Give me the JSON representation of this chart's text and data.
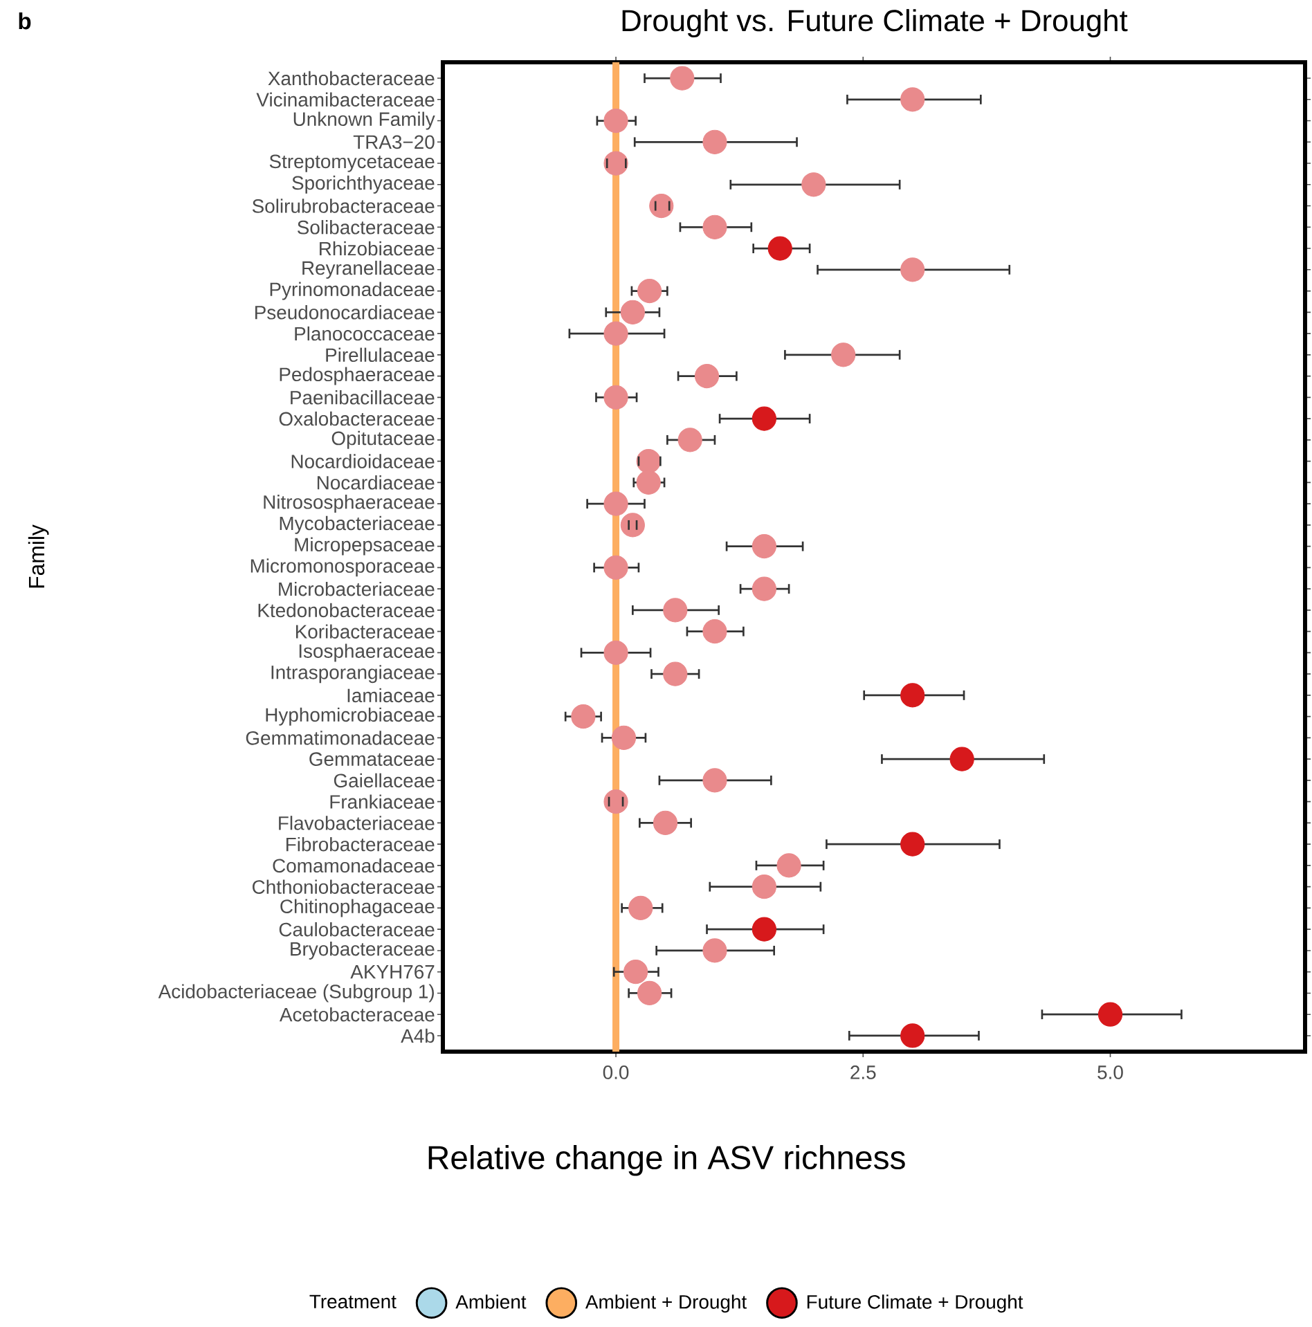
{
  "chart_data": {
    "type": "scatter",
    "orientation": "horizontal",
    "title": "Drought vs. Future Climate + Drought",
    "xlabel": "Relative change in ASV richness",
    "ylabel": "Family",
    "legend_title": "Treatment",
    "legend": "bottom",
    "grid": false,
    "annotations": [
      "b"
    ],
    "categories": [
      "Xanthobacteraceae",
      "Vicinamibacteraceae",
      "Unknown Family",
      "TRA3−20",
      "Streptomycetaceae",
      "Sporichthyaceae",
      "Solirubrobacteraceae",
      "Solibacteraceae",
      "Rhizobiaceae",
      "Reyranellaceae",
      "Pyrinomonadaceae",
      "Pseudonocardiaceae",
      "Planococcaceae",
      "Pirellulaceae",
      "Pedosphaeraceae",
      "Paenibacillaceae",
      "Oxalobacteraceae",
      "Opitutaceae",
      "Nocardioidaceae",
      "Nocardiaceae",
      "Nitrososphaeraceae",
      "Mycobacteriaceae",
      "Micropepsaceae",
      "Micromonosporaceae",
      "Microbacteriaceae",
      "Ktedonobacteraceae",
      "Koribacteraceae",
      "Isosphaeraceae",
      "Intrasporangiaceae",
      "Iamiaceae",
      "Hyphomicrobiaceae",
      "Gemmatimonadaceae",
      "Gemmataceae",
      "Gaiellaceae",
      "Frankiaceae",
      "Flavobacteriaceae",
      "Fibrobacteraceae",
      "Comamonadaceae",
      "Chthoniobacteraceae",
      "Chitinophagaceae",
      "Caulobacteraceae",
      "Bryobacteraceae",
      "AKYH767",
      "Acidobacteriaceae (Subgroup 1)",
      "Acetobacteraceae",
      "A4b"
    ],
    "xlim": [
      -1.75,
      6.97
    ],
    "xticks": [
      {
        "value": 0,
        "label": "0.0"
      },
      {
        "value": 2.5,
        "label": "2.5"
      },
      {
        "value": 5,
        "label": "5.0"
      }
    ],
    "ref_lines": [
      {
        "axis": "x",
        "value": 0,
        "color": "#fdae61"
      }
    ],
    "series": [
      {
        "name": "Ambient",
        "color": "#abd9e9",
        "values": [
          null,
          null,
          null,
          null,
          null,
          null,
          null,
          null,
          null,
          null,
          null,
          null,
          null,
          null,
          null,
          null,
          null,
          null,
          null,
          null,
          null,
          null,
          null,
          null,
          null,
          null,
          null,
          null,
          null,
          null,
          null,
          null,
          null,
          null,
          null,
          null,
          null,
          null,
          null,
          null,
          null,
          null,
          null,
          null,
          null,
          null
        ]
      },
      {
        "name": "Ambient + Drought",
        "color": "#fdae61",
        "values": [
          null,
          null,
          null,
          null,
          null,
          null,
          null,
          null,
          null,
          null,
          null,
          null,
          null,
          null,
          null,
          null,
          null,
          null,
          null,
          null,
          null,
          null,
          null,
          null,
          null,
          null,
          null,
          null,
          null,
          null,
          null,
          null,
          null,
          null,
          null,
          null,
          null,
          null,
          null,
          null,
          null,
          null,
          null,
          null,
          null,
          null
        ]
      },
      {
        "name": "Future Climate + Drought",
        "color": "#d7191c",
        "values": [
          0.67,
          3.0,
          0,
          1.0,
          0,
          2.0,
          0.46,
          1.0,
          1.66,
          3.0,
          0.34,
          0.17,
          0,
          2.3,
          0.92,
          0,
          1.5,
          0.75,
          0.33,
          0.33,
          0,
          0.17,
          1.5,
          0,
          1.5,
          0.6,
          1.0,
          0,
          0.6,
          3.0,
          -0.33,
          0.08,
          3.5,
          1.0,
          0,
          0.5,
          3.0,
          1.75,
          1.5,
          0.25,
          1.5,
          1.0,
          0.2,
          0.34,
          5.0,
          3.0
        ],
        "errors": [
          [
            0.29,
            1.06
          ],
          [
            2.34,
            3.69
          ],
          [
            -0.19,
            0.2
          ],
          [
            0.19,
            1.83
          ],
          [
            -0.09,
            0.1
          ],
          [
            1.16,
            2.87
          ],
          [
            0.4,
            0.54
          ],
          [
            0.65,
            1.37
          ],
          [
            1.39,
            1.96
          ],
          [
            2.04,
            3.98
          ],
          [
            0.16,
            0.52
          ],
          [
            -0.1,
            0.44
          ],
          [
            -0.47,
            0.49
          ],
          [
            1.71,
            2.87
          ],
          [
            0.63,
            1.22
          ],
          [
            -0.2,
            0.21
          ],
          [
            1.05,
            1.96
          ],
          [
            0.52,
            1.0
          ],
          [
            0.23,
            0.45
          ],
          [
            0.18,
            0.49
          ],
          [
            -0.29,
            0.29
          ],
          [
            0.13,
            0.21
          ],
          [
            1.12,
            1.89
          ],
          [
            -0.22,
            0.23
          ],
          [
            1.26,
            1.75
          ],
          [
            0.17,
            1.04
          ],
          [
            0.72,
            1.29
          ],
          [
            -0.35,
            0.35
          ],
          [
            0.36,
            0.84
          ],
          [
            2.51,
            3.52
          ],
          [
            -0.51,
            -0.15
          ],
          [
            -0.14,
            0.3
          ],
          [
            2.69,
            4.33
          ],
          [
            0.44,
            1.57
          ],
          [
            -0.07,
            0.07
          ],
          [
            0.24,
            0.76
          ],
          [
            2.13,
            3.88
          ],
          [
            1.42,
            2.1
          ],
          [
            0.95,
            2.07
          ],
          [
            0.06,
            0.47
          ],
          [
            0.92,
            2.1
          ],
          [
            0.41,
            1.6
          ],
          [
            -0.02,
            0.43
          ],
          [
            0.13,
            0.56
          ],
          [
            4.31,
            5.72
          ],
          [
            2.36,
            3.67
          ]
        ],
        "colors": [
          "#e98a8c",
          "#e98a8c",
          "#e98a8c",
          "#e98a8c",
          "#e98a8c",
          "#e98a8c",
          "#e98a8c",
          "#e98a8c",
          "#d7191c",
          "#e98a8c",
          "#e98a8c",
          "#e98a8c",
          "#e98a8c",
          "#e98a8c",
          "#e98a8c",
          "#e98a8c",
          "#d7191c",
          "#e98a8c",
          "#e98a8c",
          "#e98a8c",
          "#e98a8c",
          "#e98a8c",
          "#e98a8c",
          "#e98a8c",
          "#e98a8c",
          "#e98a8c",
          "#e98a8c",
          "#e98a8c",
          "#e98a8c",
          "#d7191c",
          "#e98a8c",
          "#e98a8c",
          "#d7191c",
          "#e98a8c",
          "#e98a8c",
          "#e98a8c",
          "#d7191c",
          "#e98a8c",
          "#e98a8c",
          "#e98a8c",
          "#d7191c",
          "#e98a8c",
          "#e98a8c",
          "#e98a8c",
          "#d7191c",
          "#d7191c"
        ]
      }
    ]
  }
}
